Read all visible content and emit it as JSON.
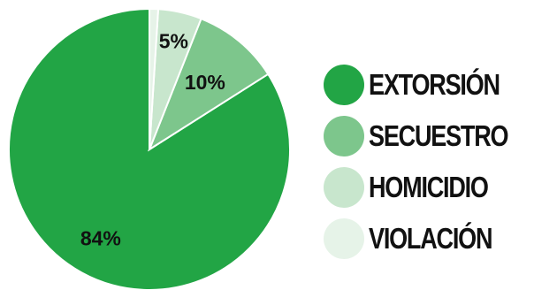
{
  "chart_data": {
    "type": "pie",
    "slices": [
      {
        "name": "EXTORSIÓN",
        "value": 84,
        "label": "84%",
        "color": "#22a545"
      },
      {
        "name": "SECUESTRO",
        "value": 10,
        "label": "10%",
        "color": "#7dc68c"
      },
      {
        "name": "HOMICIDIO",
        "value": 5,
        "label": "5%",
        "color": "#c8e6cd"
      },
      {
        "name": "VIOLACIÓN",
        "value": 1,
        "label": "",
        "color": "#e6f3e8"
      }
    ],
    "legend_position": "right"
  }
}
